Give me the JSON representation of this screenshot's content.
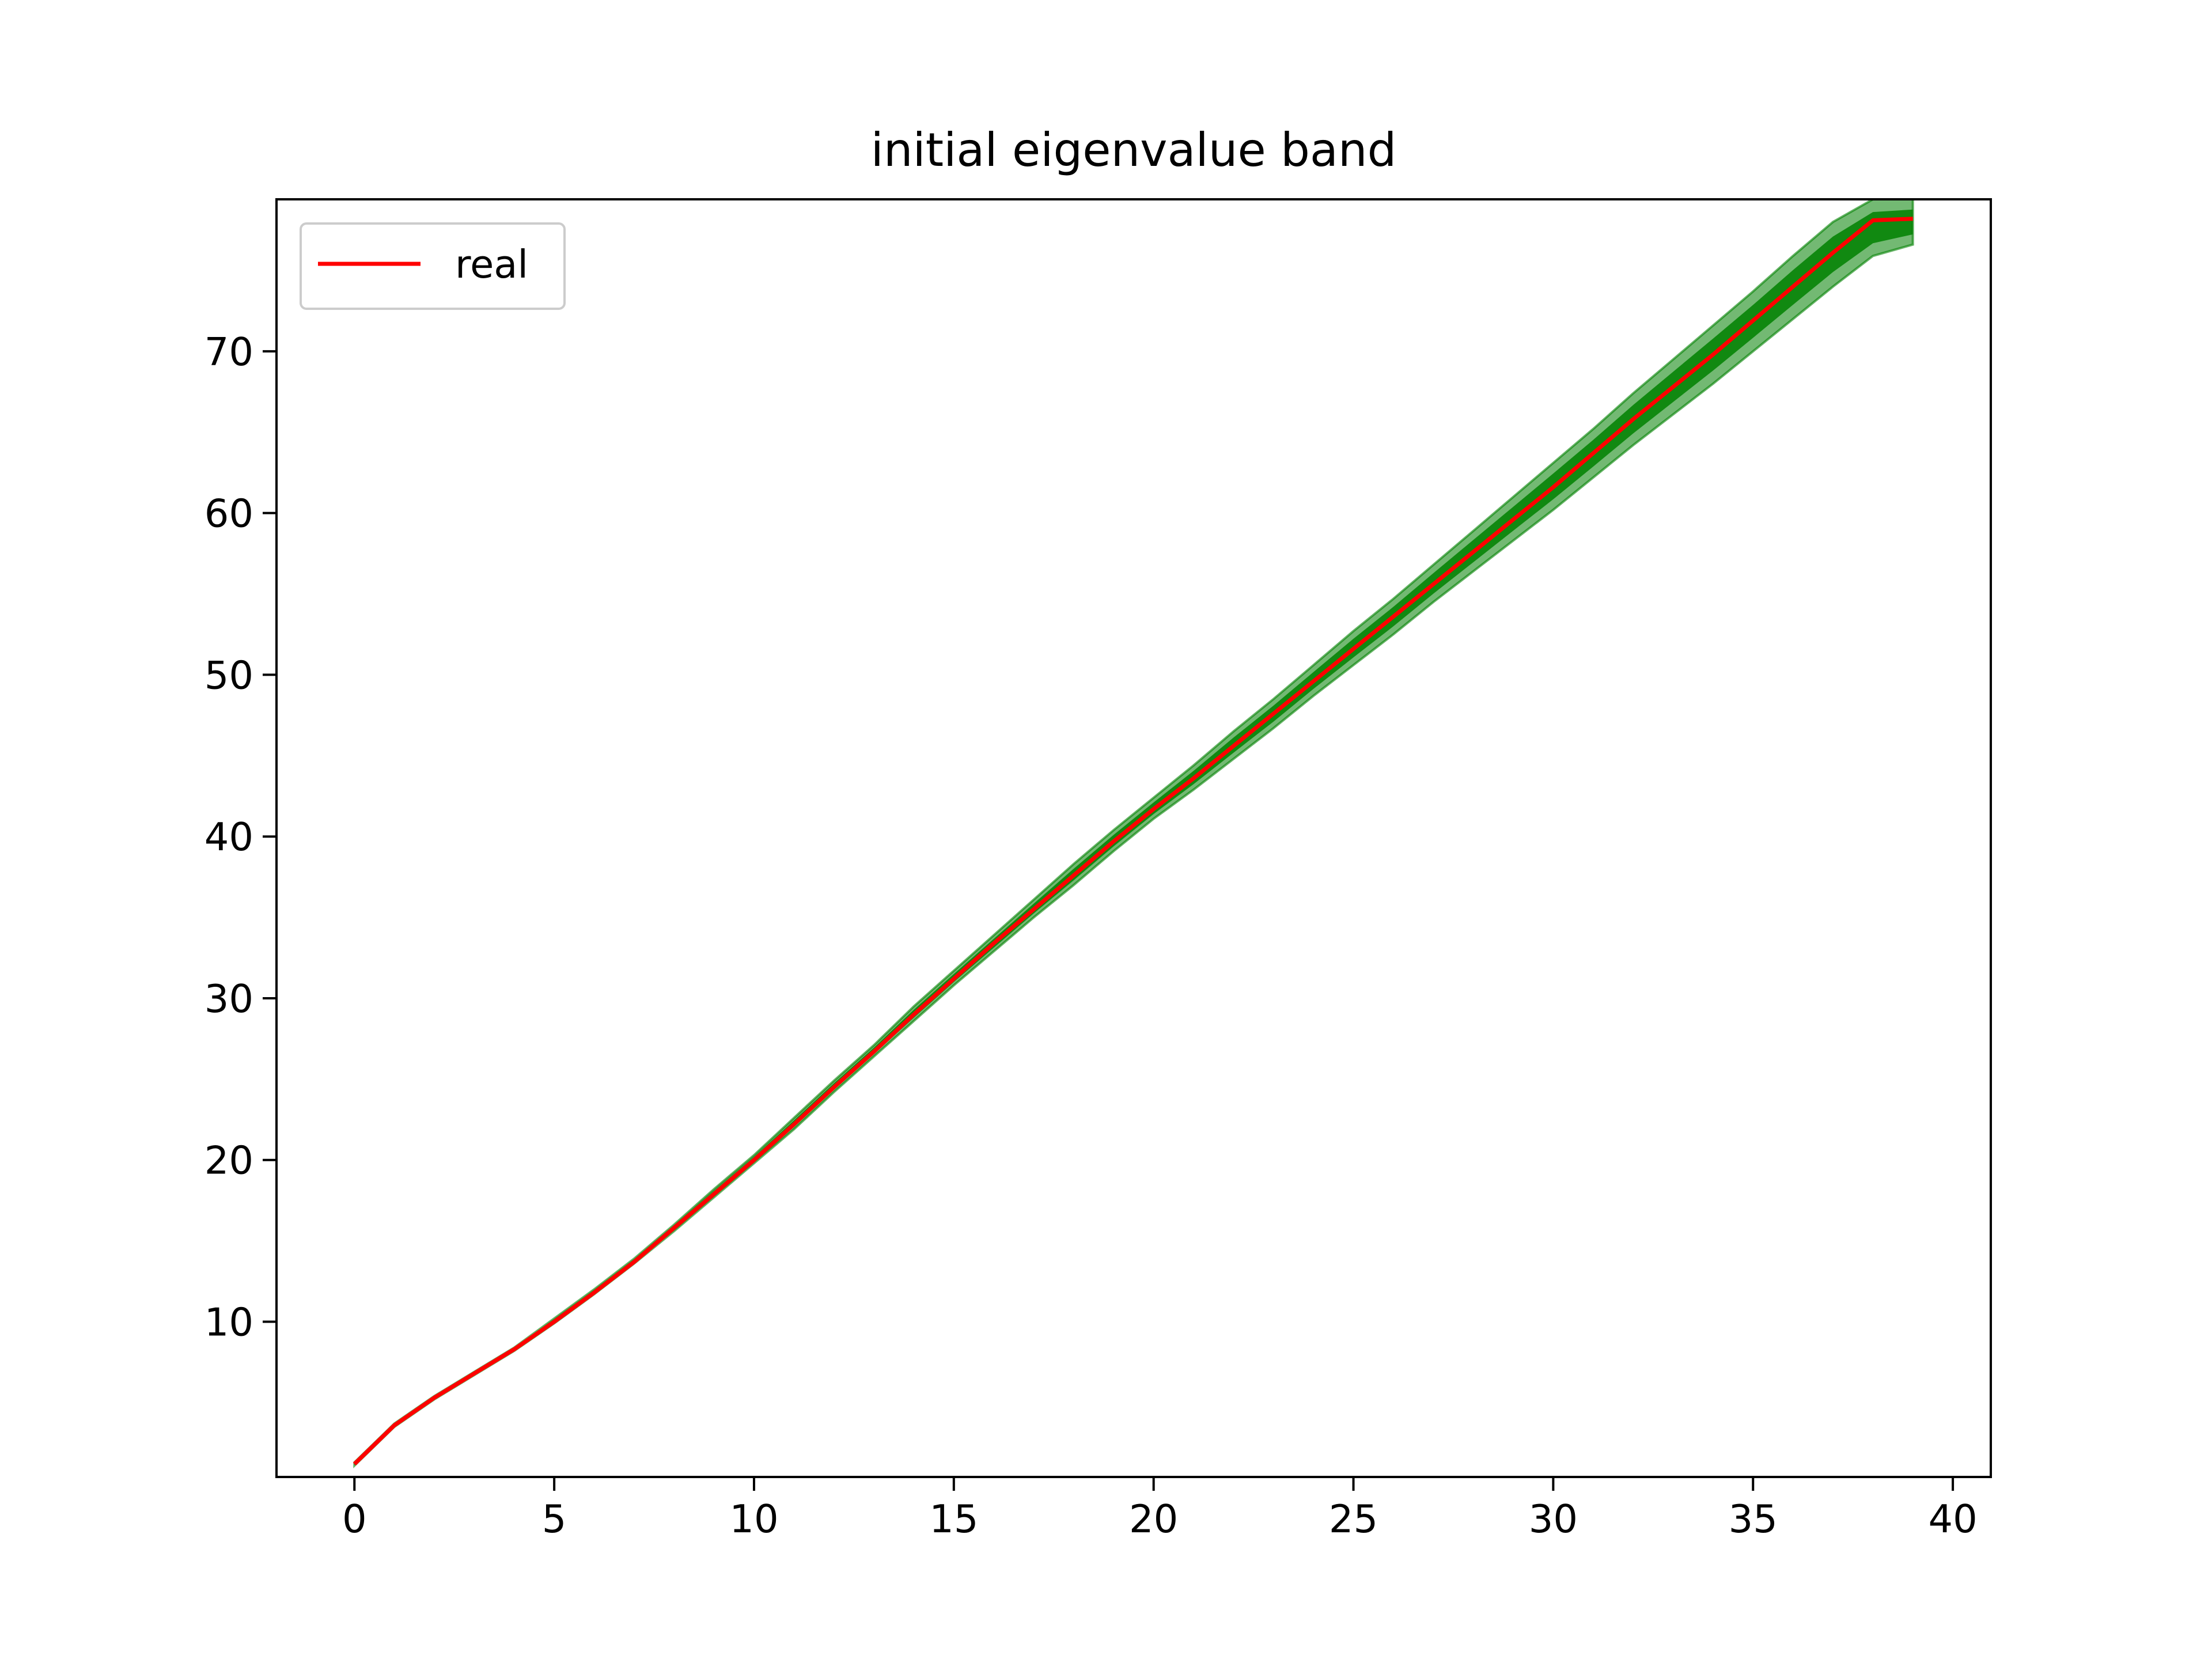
{
  "chart_data": {
    "type": "line",
    "title": "initial eigenvalue band",
    "xlabel": "",
    "ylabel": "",
    "xlim": [
      -1.95,
      40.95
    ],
    "ylim": [
      0.4,
      79.4
    ],
    "x_ticks": [
      0,
      5,
      10,
      15,
      20,
      25,
      30,
      35,
      40
    ],
    "y_ticks": [
      10,
      20,
      30,
      40,
      50,
      60,
      70
    ],
    "grid": false,
    "legend": {
      "position": "top-left",
      "entries": [
        {
          "name": "real",
          "color": "#ff0000"
        }
      ]
    },
    "colors": {
      "real": "#ff0000",
      "band": "#008000"
    },
    "series": [
      {
        "name": "real",
        "color": "#ff0000",
        "x": [
          0,
          1,
          2,
          3,
          4,
          5,
          6,
          7,
          8,
          9,
          10,
          11,
          12,
          13,
          14,
          15,
          16,
          17,
          18,
          19,
          20,
          21,
          22,
          23,
          24,
          25,
          26,
          27,
          28,
          29,
          30,
          31,
          32,
          33,
          34,
          35,
          36,
          37,
          38,
          39
        ],
        "y": [
          1.2,
          3.6,
          5.3,
          6.8,
          8.3,
          10.0,
          11.8,
          13.7,
          15.8,
          17.9,
          20.0,
          22.2,
          24.5,
          26.7,
          29.0,
          31.2,
          33.4,
          35.5,
          37.6,
          39.7,
          41.7,
          43.6,
          45.6,
          47.6,
          49.6,
          51.6,
          53.6,
          55.6,
          57.6,
          59.6,
          61.6,
          63.7,
          65.8,
          67.8,
          69.8,
          71.9,
          74.0,
          76.1,
          78.1,
          78.2
        ]
      }
    ],
    "band": {
      "color": "#008000",
      "x": [
        0,
        1,
        2,
        3,
        4,
        5,
        6,
        7,
        8,
        9,
        10,
        11,
        12,
        13,
        14,
        15,
        16,
        17,
        18,
        19,
        20,
        21,
        22,
        23,
        24,
        25,
        26,
        27,
        28,
        29,
        30,
        31,
        32,
        33,
        34,
        35,
        36,
        37,
        38,
        39
      ],
      "lower": [
        1.1,
        3.5,
        5.2,
        6.7,
        8.2,
        9.9,
        11.7,
        13.6,
        15.6,
        17.7,
        19.8,
        21.9,
        24.2,
        26.4,
        28.6,
        30.8,
        32.9,
        35.0,
        37.0,
        39.1,
        41.1,
        42.9,
        44.8,
        46.7,
        48.7,
        50.6,
        52.5,
        54.5,
        56.4,
        58.3,
        60.2,
        62.2,
        64.2,
        66.1,
        68.0,
        70.0,
        72.0,
        74.0,
        75.9,
        76.6
      ],
      "upper": [
        1.3,
        3.7,
        5.4,
        6.9,
        8.4,
        10.2,
        12.0,
        13.9,
        16.0,
        18.2,
        20.3,
        22.6,
        24.9,
        27.1,
        29.5,
        31.7,
        33.9,
        36.1,
        38.3,
        40.4,
        42.4,
        44.4,
        46.5,
        48.5,
        50.6,
        52.7,
        54.7,
        56.8,
        58.9,
        61.0,
        63.1,
        65.2,
        67.4,
        69.5,
        71.6,
        73.7,
        75.9,
        78.0,
        79.4,
        79.4
      ]
    }
  }
}
